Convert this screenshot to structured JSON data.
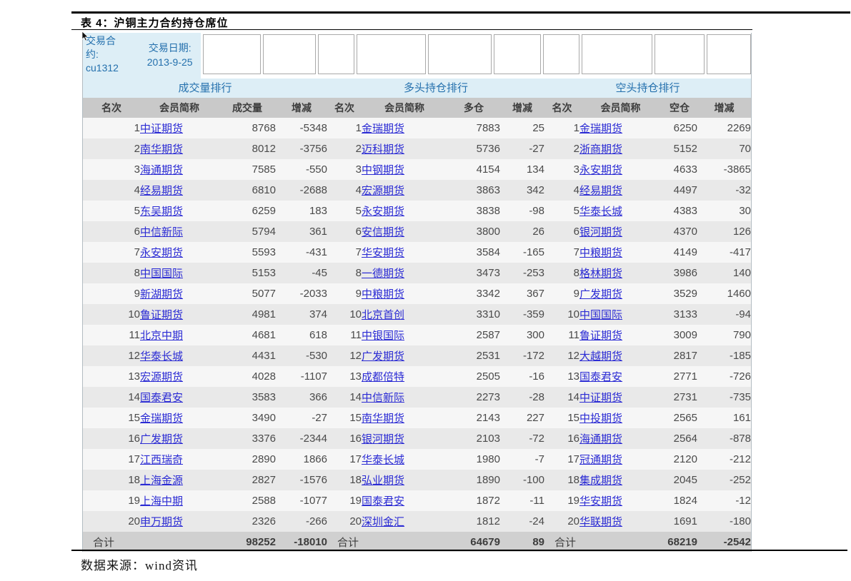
{
  "page": {
    "title": "表 4：沪铜主力合约持仓席位",
    "source": "数据来源：wind资讯"
  },
  "info": {
    "contract_label": "交易合约:",
    "contract_value": "cu1312",
    "date_label": "交易日期:",
    "date_value": "2013-9-25"
  },
  "sections": {
    "volume": "成交量排行",
    "long": "多头持仓排行",
    "short": "空头持仓排行"
  },
  "table": {
    "columns": [
      "名次",
      "会员简称",
      "成交量",
      "增减",
      "名次",
      "会员简称",
      "多仓",
      "增减",
      "名次",
      "会员简称",
      "空仓",
      "增减"
    ],
    "rows": [
      [
        1,
        "中证期货",
        8768,
        -5348,
        1,
        "金瑞期货",
        7883,
        25,
        1,
        "金瑞期货",
        6250,
        2269
      ],
      [
        2,
        "南华期货",
        8012,
        -3756,
        2,
        "迈科期货",
        5736,
        -27,
        2,
        "浙商期货",
        5152,
        70
      ],
      [
        3,
        "海通期货",
        7585,
        -550,
        3,
        "中钢期货",
        4154,
        134,
        3,
        "永安期货",
        4633,
        -3865
      ],
      [
        4,
        "经易期货",
        6810,
        -2688,
        4,
        "宏源期货",
        3863,
        342,
        4,
        "经易期货",
        4497,
        -32
      ],
      [
        5,
        "东吴期货",
        6259,
        183,
        5,
        "永安期货",
        3838,
        -98,
        5,
        "华泰长城",
        4383,
        30
      ],
      [
        6,
        "中信新际",
        5794,
        361,
        6,
        "安信期货",
        3800,
        26,
        6,
        "银河期货",
        4370,
        126
      ],
      [
        7,
        "永安期货",
        5593,
        -431,
        7,
        "华安期货",
        3584,
        -165,
        7,
        "中粮期货",
        4149,
        -417
      ],
      [
        8,
        "中国国际",
        5153,
        -45,
        8,
        "一德期货",
        3473,
        -253,
        8,
        "格林期货",
        3986,
        140
      ],
      [
        9,
        "新湖期货",
        5077,
        -2033,
        9,
        "中粮期货",
        3342,
        367,
        9,
        "广发期货",
        3529,
        1460
      ],
      [
        10,
        "鲁证期货",
        4981,
        374,
        10,
        "北京首创",
        3310,
        -359,
        10,
        "中国国际",
        3133,
        -94
      ],
      [
        11,
        "北京中期",
        4681,
        618,
        11,
        "中银国际",
        2587,
        300,
        11,
        "鲁证期货",
        3009,
        790
      ],
      [
        12,
        "华泰长城",
        4431,
        -530,
        12,
        "广发期货",
        2531,
        -172,
        12,
        "大越期货",
        2817,
        -185
      ],
      [
        13,
        "宏源期货",
        4028,
        -1107,
        13,
        "成都倍特",
        2505,
        -16,
        13,
        "国泰君安",
        2771,
        -726
      ],
      [
        14,
        "国泰君安",
        3583,
        366,
        14,
        "中信新际",
        2273,
        -28,
        14,
        "中证期货",
        2731,
        -735
      ],
      [
        15,
        "金瑞期货",
        3490,
        -27,
        15,
        "南华期货",
        2143,
        227,
        15,
        "中投期货",
        2565,
        161
      ],
      [
        16,
        "广发期货",
        3376,
        -2344,
        16,
        "银河期货",
        2103,
        -72,
        16,
        "海通期货",
        2564,
        -878
      ],
      [
        17,
        "江西瑞奇",
        2890,
        1866,
        17,
        "华泰长城",
        1980,
        -7,
        17,
        "冠通期货",
        2120,
        -212
      ],
      [
        18,
        "上海金源",
        2827,
        -1576,
        18,
        "弘业期货",
        1890,
        -100,
        18,
        "集成期货",
        2045,
        -252
      ],
      [
        19,
        "上海中期",
        2588,
        -1077,
        19,
        "国泰君安",
        1872,
        -11,
        19,
        "华安期货",
        1824,
        -12
      ],
      [
        20,
        "申万期货",
        2326,
        -266,
        20,
        "深圳金汇",
        1812,
        -24,
        20,
        "华联期货",
        1691,
        -180
      ]
    ],
    "totals": {
      "label": "合计",
      "volume": [
        98252,
        -18010
      ],
      "long": [
        64679,
        89
      ],
      "short": [
        68219,
        -2542
      ]
    }
  },
  "colors": {
    "section_bg": "#ddeef6",
    "section_text": "#2470ad",
    "column_header_bg": "#c9c9c9",
    "row_light": "#f6f6f6",
    "row_dark": "#e9e9e9",
    "totals_bg": "#d0d0d0",
    "link_blue": "#2b2bd4"
  }
}
